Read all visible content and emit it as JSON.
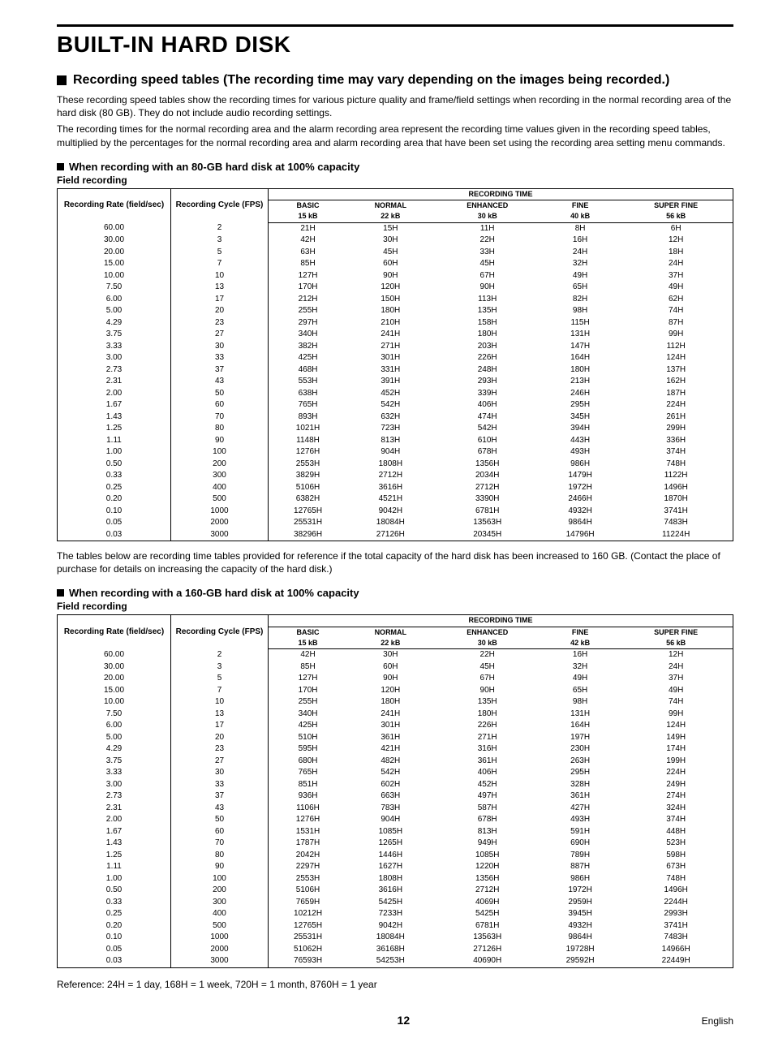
{
  "page": {
    "title": "BUILT-IN HARD DISK",
    "section_title": "Recording speed tables (The recording time may vary depending on the images being recorded.)",
    "intro_p1": "These recording speed tables show the recording times for various picture quality and frame/field settings when recording in the normal recording area of the hard disk (80 GB). They do not include audio recording settings.",
    "intro_p2": "The recording times for the normal recording area and the alarm recording area represent the recording time values given in the recording speed tables, multiplied by the percentages for the normal recording area and alarm recording area that have been set using the recording area setting menu commands.",
    "sub1": "When recording with an 80-GB hard disk at 100% capacity",
    "sub2": "When recording with a 160-GB hard disk at 100% capacity",
    "field_label": "Field recording",
    "between_tables": "The tables below are recording time tables provided for reference if the total capacity of the hard disk has been increased to 160 GB. (Contact the place of purchase for details on increasing the capacity of the hard disk.)",
    "reference_line": "Reference: 24H = 1 day, 168H = 1 week, 720H = 1 month, 8760H = 1 year",
    "page_number": "12",
    "language": "English"
  },
  "headers": {
    "rate": "Recording Rate (field/sec)",
    "cycle": "Recording Cycle (FPS)",
    "rec_time": "RECORDING TIME",
    "q1": "BASIC",
    "s1": "15 kB",
    "q2": "NORMAL",
    "s2": "22 kB",
    "q3": "ENHANCED",
    "s3": "30 kB",
    "q4": "FINE",
    "s4a": "40 kB",
    "s4b": "42 kB",
    "q5": "SUPER FINE",
    "s5": "56 kB"
  },
  "table80": {
    "type": "table",
    "background_color": "#ffffff",
    "border_color": "#000000",
    "rows": [
      [
        "60.00",
        "2",
        "21H",
        "15H",
        "11H",
        "8H",
        "6H"
      ],
      [
        "30.00",
        "3",
        "42H",
        "30H",
        "22H",
        "16H",
        "12H"
      ],
      [
        "20.00",
        "5",
        "63H",
        "45H",
        "33H",
        "24H",
        "18H"
      ],
      [
        "15.00",
        "7",
        "85H",
        "60H",
        "45H",
        "32H",
        "24H"
      ],
      [
        "10.00",
        "10",
        "127H",
        "90H",
        "67H",
        "49H",
        "37H"
      ],
      [
        "7.50",
        "13",
        "170H",
        "120H",
        "90H",
        "65H",
        "49H"
      ],
      [
        "6.00",
        "17",
        "212H",
        "150H",
        "113H",
        "82H",
        "62H"
      ],
      [
        "5.00",
        "20",
        "255H",
        "180H",
        "135H",
        "98H",
        "74H"
      ],
      [
        "4.29",
        "23",
        "297H",
        "210H",
        "158H",
        "115H",
        "87H"
      ],
      [
        "3.75",
        "27",
        "340H",
        "241H",
        "180H",
        "131H",
        "99H"
      ],
      [
        "3.33",
        "30",
        "382H",
        "271H",
        "203H",
        "147H",
        "112H"
      ],
      [
        "3.00",
        "33",
        "425H",
        "301H",
        "226H",
        "164H",
        "124H"
      ],
      [
        "2.73",
        "37",
        "468H",
        "331H",
        "248H",
        "180H",
        "137H"
      ],
      [
        "2.31",
        "43",
        "553H",
        "391H",
        "293H",
        "213H",
        "162H"
      ],
      [
        "2.00",
        "50",
        "638H",
        "452H",
        "339H",
        "246H",
        "187H"
      ],
      [
        "1.67",
        "60",
        "765H",
        "542H",
        "406H",
        "295H",
        "224H"
      ],
      [
        "1.43",
        "70",
        "893H",
        "632H",
        "474H",
        "345H",
        "261H"
      ],
      [
        "1.25",
        "80",
        "1021H",
        "723H",
        "542H",
        "394H",
        "299H"
      ],
      [
        "1.11",
        "90",
        "1148H",
        "813H",
        "610H",
        "443H",
        "336H"
      ],
      [
        "1.00",
        "100",
        "1276H",
        "904H",
        "678H",
        "493H",
        "374H"
      ],
      [
        "0.50",
        "200",
        "2553H",
        "1808H",
        "1356H",
        "986H",
        "748H"
      ],
      [
        "0.33",
        "300",
        "3829H",
        "2712H",
        "2034H",
        "1479H",
        "1122H"
      ],
      [
        "0.25",
        "400",
        "5106H",
        "3616H",
        "2712H",
        "1972H",
        "1496H"
      ],
      [
        "0.20",
        "500",
        "6382H",
        "4521H",
        "3390H",
        "2466H",
        "1870H"
      ],
      [
        "0.10",
        "1000",
        "12765H",
        "9042H",
        "6781H",
        "4932H",
        "3741H"
      ],
      [
        "0.05",
        "2000",
        "25531H",
        "18084H",
        "13563H",
        "9864H",
        "7483H"
      ],
      [
        "0.03",
        "3000",
        "38296H",
        "27126H",
        "20345H",
        "14796H",
        "11224H"
      ]
    ]
  },
  "table160": {
    "type": "table",
    "background_color": "#ffffff",
    "border_color": "#000000",
    "rows": [
      [
        "60.00",
        "2",
        "42H",
        "30H",
        "22H",
        "16H",
        "12H"
      ],
      [
        "30.00",
        "3",
        "85H",
        "60H",
        "45H",
        "32H",
        "24H"
      ],
      [
        "20.00",
        "5",
        "127H",
        "90H",
        "67H",
        "49H",
        "37H"
      ],
      [
        "15.00",
        "7",
        "170H",
        "120H",
        "90H",
        "65H",
        "49H"
      ],
      [
        "10.00",
        "10",
        "255H",
        "180H",
        "135H",
        "98H",
        "74H"
      ],
      [
        "7.50",
        "13",
        "340H",
        "241H",
        "180H",
        "131H",
        "99H"
      ],
      [
        "6.00",
        "17",
        "425H",
        "301H",
        "226H",
        "164H",
        "124H"
      ],
      [
        "5.00",
        "20",
        "510H",
        "361H",
        "271H",
        "197H",
        "149H"
      ],
      [
        "4.29",
        "23",
        "595H",
        "421H",
        "316H",
        "230H",
        "174H"
      ],
      [
        "3.75",
        "27",
        "680H",
        "482H",
        "361H",
        "263H",
        "199H"
      ],
      [
        "3.33",
        "30",
        "765H",
        "542H",
        "406H",
        "295H",
        "224H"
      ],
      [
        "3.00",
        "33",
        "851H",
        "602H",
        "452H",
        "328H",
        "249H"
      ],
      [
        "2.73",
        "37",
        "936H",
        "663H",
        "497H",
        "361H",
        "274H"
      ],
      [
        "2.31",
        "43",
        "1106H",
        "783H",
        "587H",
        "427H",
        "324H"
      ],
      [
        "2.00",
        "50",
        "1276H",
        "904H",
        "678H",
        "493H",
        "374H"
      ],
      [
        "1.67",
        "60",
        "1531H",
        "1085H",
        "813H",
        "591H",
        "448H"
      ],
      [
        "1.43",
        "70",
        "1787H",
        "1265H",
        "949H",
        "690H",
        "523H"
      ],
      [
        "1.25",
        "80",
        "2042H",
        "1446H",
        "1085H",
        "789H",
        "598H"
      ],
      [
        "1.11",
        "90",
        "2297H",
        "1627H",
        "1220H",
        "887H",
        "673H"
      ],
      [
        "1.00",
        "100",
        "2553H",
        "1808H",
        "1356H",
        "986H",
        "748H"
      ],
      [
        "0.50",
        "200",
        "5106H",
        "3616H",
        "2712H",
        "1972H",
        "1496H"
      ],
      [
        "0.33",
        "300",
        "7659H",
        "5425H",
        "4069H",
        "2959H",
        "2244H"
      ],
      [
        "0.25",
        "400",
        "10212H",
        "7233H",
        "5425H",
        "3945H",
        "2993H"
      ],
      [
        "0.20",
        "500",
        "12765H",
        "9042H",
        "6781H",
        "4932H",
        "3741H"
      ],
      [
        "0.10",
        "1000",
        "25531H",
        "18084H",
        "13563H",
        "9864H",
        "7483H"
      ],
      [
        "0.05",
        "2000",
        "51062H",
        "36168H",
        "27126H",
        "19728H",
        "14966H"
      ],
      [
        "0.03",
        "3000",
        "76593H",
        "54253H",
        "40690H",
        "29592H",
        "22449H"
      ]
    ]
  }
}
